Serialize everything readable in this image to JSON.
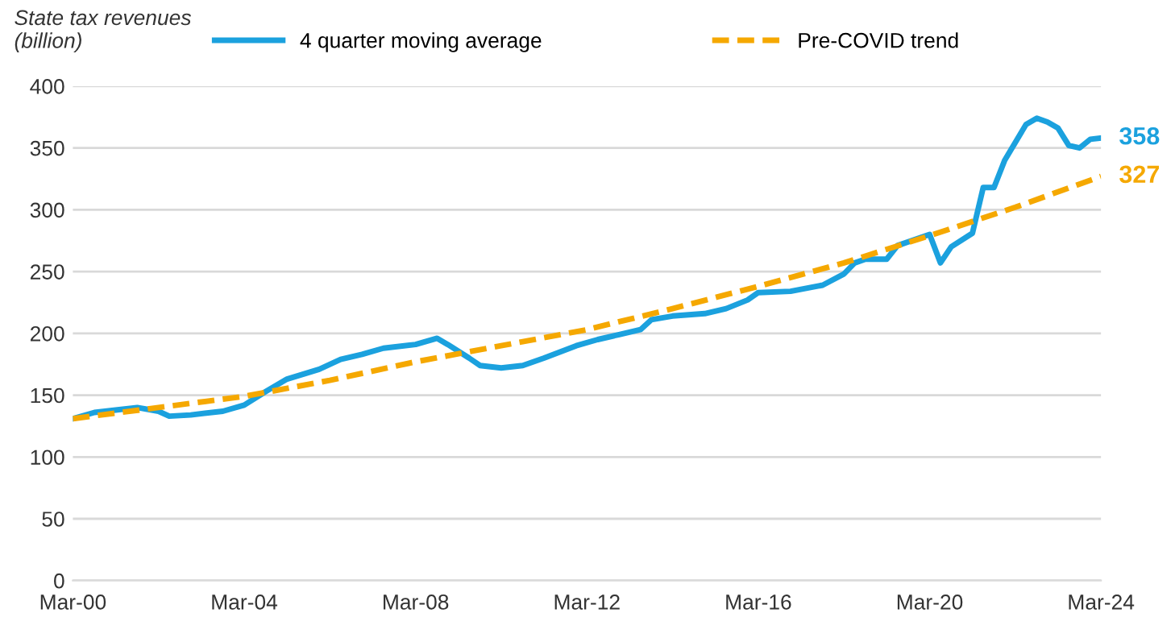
{
  "chart_data": {
    "type": "line",
    "ylabel": "State tax revenues\n(billion)",
    "series": [
      {
        "name": "4 quarter moving average",
        "color": "#1ba1de",
        "line_style": "solid",
        "x": [
          "2000-03",
          "2000-09",
          "2001-03",
          "2001-09",
          "2002-03",
          "2002-06",
          "2002-12",
          "2003-09",
          "2004-03",
          "2004-09",
          "2005-03",
          "2005-12",
          "2006-06",
          "2006-12",
          "2007-06",
          "2008-03",
          "2008-09",
          "2008-12",
          "2009-06",
          "2009-09",
          "2010-03",
          "2010-09",
          "2011-03",
          "2011-12",
          "2012-06",
          "2012-12",
          "2013-06",
          "2013-09",
          "2014-03",
          "2014-12",
          "2015-06",
          "2015-12",
          "2016-03",
          "2016-12",
          "2017-09",
          "2018-03",
          "2018-06",
          "2018-09",
          "2019-03",
          "2019-06",
          "2020-03",
          "2020-06",
          "2020-09",
          "2021-03",
          "2021-06",
          "2021-09",
          "2021-12",
          "2022-06",
          "2022-09",
          "2022-12",
          "2023-03",
          "2023-06",
          "2023-09",
          "2023-12",
          "2024-03"
        ],
        "values": [
          131,
          136,
          138,
          140,
          137,
          133,
          134,
          137,
          142,
          153,
          163,
          171,
          179,
          183,
          188,
          191,
          196,
          191,
          180,
          174,
          172,
          174,
          180,
          190,
          195,
          199,
          203,
          211,
          214,
          216,
          220,
          227,
          233,
          234,
          239,
          248,
          257,
          260,
          260,
          271,
          280,
          257,
          270,
          281,
          318,
          318,
          340,
          369,
          374,
          371,
          366,
          352,
          350,
          357,
          358
        ],
        "value_labels": [
          null,
          null,
          null,
          null,
          null,
          null,
          null,
          null,
          null,
          null,
          null,
          null,
          null,
          null,
          null,
          null,
          null,
          null,
          null,
          null,
          null,
          null,
          null,
          null,
          null,
          null,
          null,
          null,
          null,
          null,
          null,
          null,
          null,
          null,
          null,
          null,
          null,
          null,
          null,
          null,
          null,
          null,
          null,
          null,
          null,
          null,
          null,
          null,
          null,
          null,
          null,
          null,
          null,
          null,
          "358"
        ]
      },
      {
        "name": "Pre-COVID trend",
        "color": "#f5a800",
        "line_style": "dashed",
        "x": [
          "2000-03",
          "2002-03",
          "2004-03",
          "2006-03",
          "2008-03",
          "2010-03",
          "2012-03",
          "2014-03",
          "2016-03",
          "2018-03",
          "2020-03",
          "2022-03",
          "2024-03"
        ],
        "values": [
          131,
          140,
          149,
          162,
          177,
          190,
          203,
          220,
          238,
          257,
          279,
          302,
          327
        ],
        "value_labels": [
          null,
          null,
          null,
          null,
          null,
          null,
          null,
          null,
          null,
          null,
          null,
          null,
          "327"
        ]
      }
    ],
    "xlim": [
      "2000-03",
      "2024-03"
    ],
    "xticks": [
      {
        "value": "2000-03",
        "label": "Mar-00"
      },
      {
        "value": "2004-03",
        "label": "Mar-04"
      },
      {
        "value": "2008-03",
        "label": "Mar-08"
      },
      {
        "value": "2012-03",
        "label": "Mar-12"
      },
      {
        "value": "2016-03",
        "label": "Mar-16"
      },
      {
        "value": "2020-03",
        "label": "Mar-20"
      },
      {
        "value": "2024-03",
        "label": "Mar-24"
      }
    ],
    "ylim": [
      0,
      400
    ],
    "yticks": [
      0,
      50,
      100,
      150,
      200,
      250,
      300,
      350,
      400
    ],
    "grid": "y",
    "legend": "top",
    "marker": "none"
  }
}
